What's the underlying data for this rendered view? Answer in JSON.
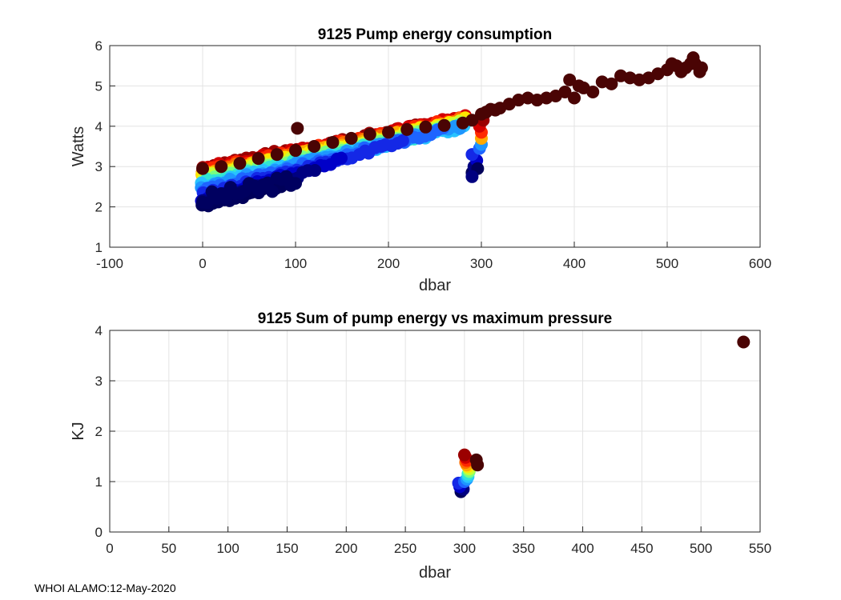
{
  "footer": "WHOI ALAMO:12-May-2020",
  "chart_data": [
    {
      "type": "scatter",
      "title": "9125 Pump energy consumption",
      "xlabel": "dbar",
      "ylabel": "Watts",
      "xlim": [
        -100,
        600
      ],
      "ylim": [
        1,
        6
      ],
      "xticks": [
        -100,
        0,
        100,
        200,
        300,
        400,
        500,
        600
      ],
      "yticks": [
        1,
        2,
        3,
        4,
        5,
        6
      ],
      "xtick_labels": [
        "-100",
        "0",
        "100",
        "200",
        "300",
        "400",
        "500",
        "600"
      ],
      "ytick_labels": [
        "1",
        "2",
        "3",
        "4",
        "5",
        "6"
      ],
      "grid": true,
      "colormap": "jet (dark blue = early profiles, dark red = latest profiles)",
      "profiles": [
        {
          "base": 2.0,
          "slope": 0.0065,
          "xmax": 100,
          "color": "#00005a"
        },
        {
          "base": 2.1,
          "slope": 0.0065,
          "xmax": 120,
          "color": "#000080"
        },
        {
          "base": 2.2,
          "slope": 0.0065,
          "xmax": 150,
          "color": "#0000c8"
        },
        {
          "base": 2.3,
          "slope": 0.006,
          "xmax": 220,
          "color": "#1428e6"
        },
        {
          "base": 2.4,
          "slope": 0.0058,
          "xmax": 260,
          "color": "#1e64ff"
        },
        {
          "base": 2.48,
          "slope": 0.0055,
          "xmax": 280,
          "color": "#1e96ff"
        },
        {
          "base": 2.55,
          "slope": 0.005,
          "xmax": 285,
          "color": "#28c3ff"
        },
        {
          "base": 2.6,
          "slope": 0.005,
          "xmax": 285,
          "color": "#32e6d2"
        },
        {
          "base": 2.65,
          "slope": 0.005,
          "xmax": 285,
          "color": "#78ff82"
        },
        {
          "base": 2.7,
          "slope": 0.005,
          "xmax": 285,
          "color": "#c8ff32"
        },
        {
          "base": 2.75,
          "slope": 0.005,
          "xmax": 285,
          "color": "#ffe600"
        },
        {
          "base": 2.8,
          "slope": 0.0048,
          "xmax": 285,
          "color": "#ffaa00"
        },
        {
          "base": 2.85,
          "slope": 0.0047,
          "xmax": 285,
          "color": "#ff6e00"
        },
        {
          "base": 2.9,
          "slope": 0.0046,
          "xmax": 285,
          "color": "#ff2800"
        },
        {
          "base": 2.95,
          "slope": 0.0045,
          "xmax": 285,
          "color": "#d20000"
        },
        {
          "base": 2.98,
          "slope": 0.0044,
          "xmax": 285,
          "color": "#9b0000"
        }
      ],
      "cluster_300": [
        {
          "x": 290,
          "y": 2.85,
          "color": "#00005a"
        },
        {
          "x": 292,
          "y": 3.0,
          "color": "#000080"
        },
        {
          "x": 295,
          "y": 3.15,
          "color": "#0000c8"
        },
        {
          "x": 290,
          "y": 3.3,
          "color": "#1428e6"
        },
        {
          "x": 298,
          "y": 3.45,
          "color": "#1e64ff"
        },
        {
          "x": 300,
          "y": 3.55,
          "color": "#1e96ff"
        },
        {
          "x": 296,
          "y": 2.95,
          "color": "#00005a"
        },
        {
          "x": 290,
          "y": 2.75,
          "color": "#000080"
        },
        {
          "x": 300,
          "y": 3.7,
          "color": "#ffaa00"
        },
        {
          "x": 300,
          "y": 3.85,
          "color": "#ff2800"
        },
        {
          "x": 298,
          "y": 4.0,
          "color": "#d20000"
        },
        {
          "x": 302,
          "y": 4.15,
          "color": "#9b0000"
        }
      ],
      "outlier": {
        "x": 102,
        "y": 3.95,
        "color": "#4a0404"
      },
      "deep_profile": {
        "color": "#4a0404",
        "x": [
          0,
          20,
          40,
          60,
          80,
          100,
          120,
          140,
          160,
          180,
          200,
          220,
          240,
          260,
          280,
          290,
          300,
          305,
          310,
          315,
          320,
          330,
          340,
          350,
          360,
          370,
          380,
          390,
          395,
          400,
          405,
          410,
          420,
          430,
          440,
          450,
          460,
          470,
          480,
          490,
          500,
          505,
          510,
          515,
          520,
          525,
          528,
          530,
          535,
          537
        ],
        "y": [
          2.95,
          3.0,
          3.08,
          3.2,
          3.3,
          3.4,
          3.5,
          3.6,
          3.7,
          3.8,
          3.85,
          3.92,
          3.98,
          4.02,
          4.08,
          4.15,
          4.3,
          4.35,
          4.42,
          4.4,
          4.45,
          4.55,
          4.65,
          4.7,
          4.65,
          4.7,
          4.75,
          4.85,
          5.15,
          4.7,
          5.0,
          4.95,
          4.85,
          5.1,
          5.05,
          5.25,
          5.2,
          5.15,
          5.2,
          5.3,
          5.4,
          5.55,
          5.5,
          5.35,
          5.45,
          5.55,
          5.7,
          5.55,
          5.35,
          5.45
        ]
      }
    },
    {
      "type": "scatter",
      "title": "9125 Sum of pump energy vs maximum pressure",
      "xlabel": "dbar",
      "ylabel": "KJ",
      "xlim": [
        0,
        550
      ],
      "ylim": [
        0,
        4
      ],
      "xticks": [
        0,
        50,
        100,
        150,
        200,
        250,
        300,
        350,
        400,
        450,
        500,
        550
      ],
      "yticks": [
        0,
        1,
        2,
        3,
        4
      ],
      "xtick_labels": [
        "0",
        "50",
        "100",
        "150",
        "200",
        "250",
        "300",
        "350",
        "400",
        "450",
        "500",
        "550"
      ],
      "ytick_labels": [
        "0",
        "1",
        "2",
        "3",
        "4"
      ],
      "grid": true,
      "points": [
        {
          "x": 297,
          "y": 0.8,
          "color": "#00005a"
        },
        {
          "x": 299,
          "y": 0.85,
          "color": "#000080"
        },
        {
          "x": 296,
          "y": 0.9,
          "color": "#0000c8"
        },
        {
          "x": 295,
          "y": 0.97,
          "color": "#1428e6"
        },
        {
          "x": 300,
          "y": 1.0,
          "color": "#1e64ff"
        },
        {
          "x": 302,
          "y": 1.05,
          "color": "#1e96ff"
        },
        {
          "x": 303,
          "y": 1.1,
          "color": "#28c3ff"
        },
        {
          "x": 303,
          "y": 1.15,
          "color": "#32e6d2"
        },
        {
          "x": 304,
          "y": 1.2,
          "color": "#78ff82"
        },
        {
          "x": 304,
          "y": 1.25,
          "color": "#c8ff32"
        },
        {
          "x": 303,
          "y": 1.3,
          "color": "#ffe600"
        },
        {
          "x": 302,
          "y": 1.33,
          "color": "#ffaa00"
        },
        {
          "x": 301,
          "y": 1.38,
          "color": "#ff6e00"
        },
        {
          "x": 302,
          "y": 1.42,
          "color": "#ff2800"
        },
        {
          "x": 301,
          "y": 1.48,
          "color": "#d20000"
        },
        {
          "x": 300,
          "y": 1.53,
          "color": "#9b0000"
        },
        {
          "x": 310,
          "y": 1.43,
          "color": "#4a0404"
        },
        {
          "x": 311,
          "y": 1.33,
          "color": "#4a0404"
        },
        {
          "x": 536,
          "y": 3.77,
          "color": "#4a0404"
        }
      ]
    }
  ]
}
